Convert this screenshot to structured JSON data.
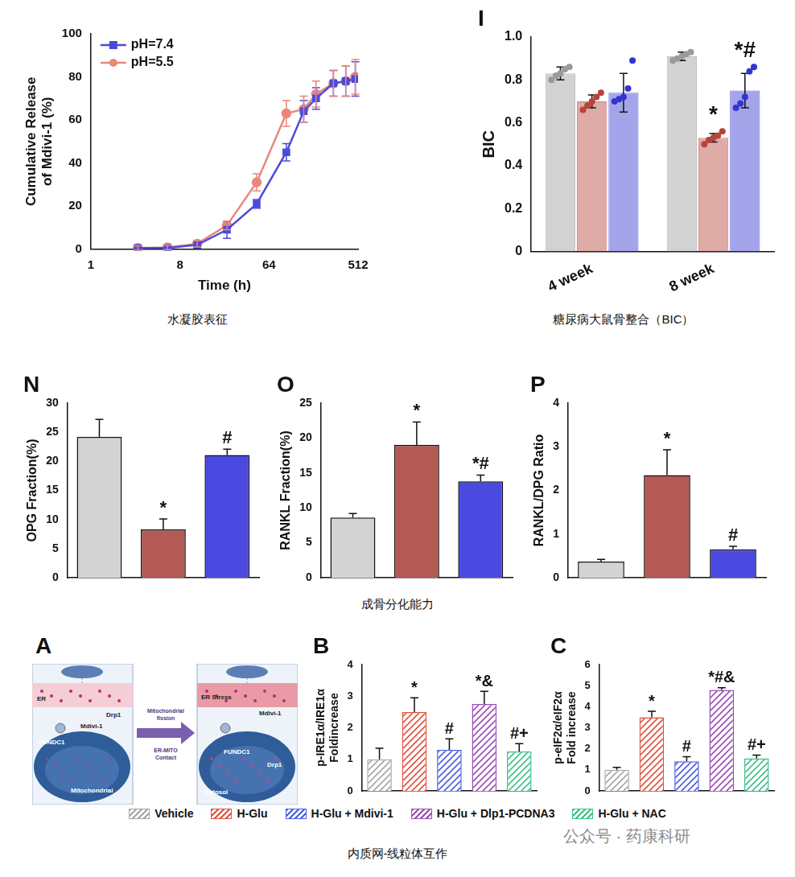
{
  "captions": [
    "水凝胶表征",
    "糖尿病大鼠骨整合（BIC）",
    "成骨分化能力",
    "内质网-线粒体互作"
  ],
  "watermark": "公众号 · 药康科研",
  "diagram": {
    "panel": "A",
    "left_labels": [
      "ER",
      "Drp1",
      "FUNDC1",
      "Mdivi-1",
      "Mitochondrial"
    ],
    "arrow_labels": [
      "Mitochondrial fission",
      "ER-MITO Contact"
    ],
    "right_labels": [
      "ER Stress",
      "Mdivi-1",
      "FUNDC1",
      "Drp1",
      "Cytosol"
    ]
  },
  "shared_legend": {
    "names": [
      "Vehicle",
      "H-Glu",
      "H-Glu + Mdivi-1",
      "H-Glu + Dlp1-PCDNA3",
      "H-Glu + NAC"
    ],
    "colors": [
      "#a6a6a6",
      "#e0523f",
      "#4a5fe0",
      "#9b4fb5",
      "#41c08a"
    ]
  },
  "chart_data": [
    {
      "type": "line",
      "x_label": "Time (h)",
      "y_label": [
        "Cumulative Release",
        "of Mdivi-1 (%)"
      ],
      "log": "x",
      "xlim": [
        1,
        512
      ],
      "xticks": [
        1,
        8,
        64,
        512
      ],
      "ylim": [
        0,
        100
      ],
      "yticks": [
        0,
        20,
        40,
        60,
        80,
        100
      ],
      "grid": false,
      "legend": "upper left",
      "x": [
        3,
        6,
        12,
        24,
        48,
        96,
        144,
        192,
        288,
        384,
        480
      ],
      "series": [
        {
          "name": "pH=7.4",
          "color": "#4b4bdb",
          "marker": "square",
          "values": [
            0.5,
            0.5,
            2,
            9,
            21,
            45,
            64,
            70,
            77,
            78,
            79
          ],
          "errors": [
            1,
            1,
            1.5,
            4,
            2,
            4,
            5,
            5,
            6,
            7,
            8
          ]
        },
        {
          "name": "pH=5.5",
          "color": "#e8877a",
          "marker": "circle",
          "values": [
            0.5,
            0.8,
            2.5,
            11,
            31,
            63,
            65,
            72,
            77,
            78,
            80
          ],
          "errors": [
            1,
            1,
            1.5,
            2,
            4,
            6,
            6,
            6,
            6,
            7,
            8
          ]
        }
      ]
    },
    {
      "type": "bar",
      "panel": "I",
      "y_label": "BIC",
      "categories": [
        "4 week",
        "8 week"
      ],
      "ylim": [
        0,
        1
      ],
      "yticks": [
        0,
        0.2,
        0.4,
        0.6,
        0.8,
        {
          "value": 1,
          "label": "1.0"
        }
      ],
      "grid": false,
      "series": [
        {
          "color": "#9a9a9a",
          "values": [
            0.83,
            0.91
          ],
          "errors": [
            0.03,
            0.02
          ],
          "points": [
            [
              0.8,
              0.82,
              0.83,
              0.85,
              0.86
            ],
            [
              0.89,
              0.9,
              0.91,
              0.92,
              0.93
            ]
          ]
        },
        {
          "color": "#b5443a",
          "values": [
            0.7,
            0.53
          ],
          "errors": [
            0.03,
            0.02
          ],
          "points": [
            [
              0.66,
              0.68,
              0.7,
              0.72,
              0.74
            ],
            [
              0.5,
              0.52,
              0.53,
              0.54,
              0.56
            ]
          ],
          "annotations": [
            null,
            "*"
          ]
        },
        {
          "color": "#3434d0",
          "values": [
            0.74,
            0.75
          ],
          "errors": [
            0.09,
            0.08
          ],
          "points": [
            [
              0.7,
              0.71,
              0.72,
              0.76,
              0.89
            ],
            [
              0.67,
              0.69,
              0.72,
              0.84,
              0.86
            ]
          ],
          "annotations": [
            null,
            "*#"
          ]
        }
      ]
    },
    {
      "type": "bar",
      "panel": "N",
      "y_label": "OPG Fraction(%)",
      "categories": [
        null,
        null,
        null
      ],
      "colors": [
        "#d3d3d3",
        "#b35a55",
        "#4a4ae0"
      ],
      "values": [
        24.2,
        8.3,
        21.1
      ],
      "errors": [
        3,
        1.8,
        1
      ],
      "annotations": [
        null,
        "*",
        "#"
      ],
      "ylim": [
        0,
        30
      ],
      "yticks": [
        0,
        5,
        10,
        15,
        20,
        25,
        30
      ],
      "grid": false,
      "tick_labels": "y"
    },
    {
      "type": "bar",
      "panel": "O",
      "y_label": "RANKL Fraction(%)",
      "categories": [
        null,
        null,
        null
      ],
      "colors": [
        "#d3d3d3",
        "#b35a55",
        "#4a4ae0"
      ],
      "values": [
        8.6,
        19,
        13.8
      ],
      "errors": [
        0.6,
        3.3,
        0.9
      ],
      "annotations": [
        null,
        "*",
        "*#"
      ],
      "ylim": [
        0,
        25
      ],
      "yticks": [
        0,
        5,
        10,
        15,
        20,
        25
      ],
      "grid": false,
      "tick_labels": "y"
    },
    {
      "type": "bar",
      "panel": "P",
      "y_label": "RANKL/DPG Ratio",
      "categories": [
        null,
        null,
        null
      ],
      "colors": [
        "#d3d3d3",
        "#b35a55",
        "#4a4ae0"
      ],
      "values": [
        0.37,
        2.35,
        0.65
      ],
      "errors": [
        0.05,
        0.58,
        0.07
      ],
      "annotations": [
        null,
        "*",
        "#"
      ],
      "ylim": [
        0,
        4
      ],
      "yticks": [
        0,
        1,
        2,
        3,
        4
      ],
      "grid": false,
      "tick_labels": "y"
    },
    {
      "type": "bar",
      "panel": "B",
      "y_label": [
        "p-IRE1α/IRE1α",
        "Foldincrease"
      ],
      "categories": [
        null,
        null,
        null,
        null,
        null
      ],
      "colors": [
        "#a6a6a6",
        "#e0523f",
        "#4a5fe0",
        "#9b4fb5",
        "#41c08a"
      ],
      "values": [
        1,
        2.5,
        1.3,
        2.75,
        1.25
      ],
      "errors": [
        0.35,
        0.45,
        0.35,
        0.4,
        0.25
      ],
      "annotations": [
        null,
        "*",
        "#",
        "*&",
        "#+"
      ],
      "ylim": [
        0,
        4
      ],
      "yticks": [
        0,
        1,
        2,
        3,
        4
      ],
      "grid": false,
      "tick_labels": "y"
    },
    {
      "type": "bar",
      "panel": "C",
      "y_label": [
        "p-eIF2α/eIF2α",
        "Fold increase"
      ],
      "categories": [
        null,
        null,
        null,
        null,
        null
      ],
      "colors": [
        "#a6a6a6",
        "#e0523f",
        "#4a5fe0",
        "#9b4fb5",
        "#41c08a"
      ],
      "values": [
        1,
        3.5,
        1.4,
        4.8,
        1.55
      ],
      "errors": [
        0.12,
        0.28,
        0.22,
        0.1,
        0.15
      ],
      "annotations": [
        null,
        "*",
        "#",
        "*#&",
        "#+"
      ],
      "ylim": [
        0,
        6
      ],
      "yticks": [
        0,
        1,
        2,
        3,
        4,
        5,
        6
      ],
      "grid": false,
      "tick_labels": "y"
    }
  ]
}
